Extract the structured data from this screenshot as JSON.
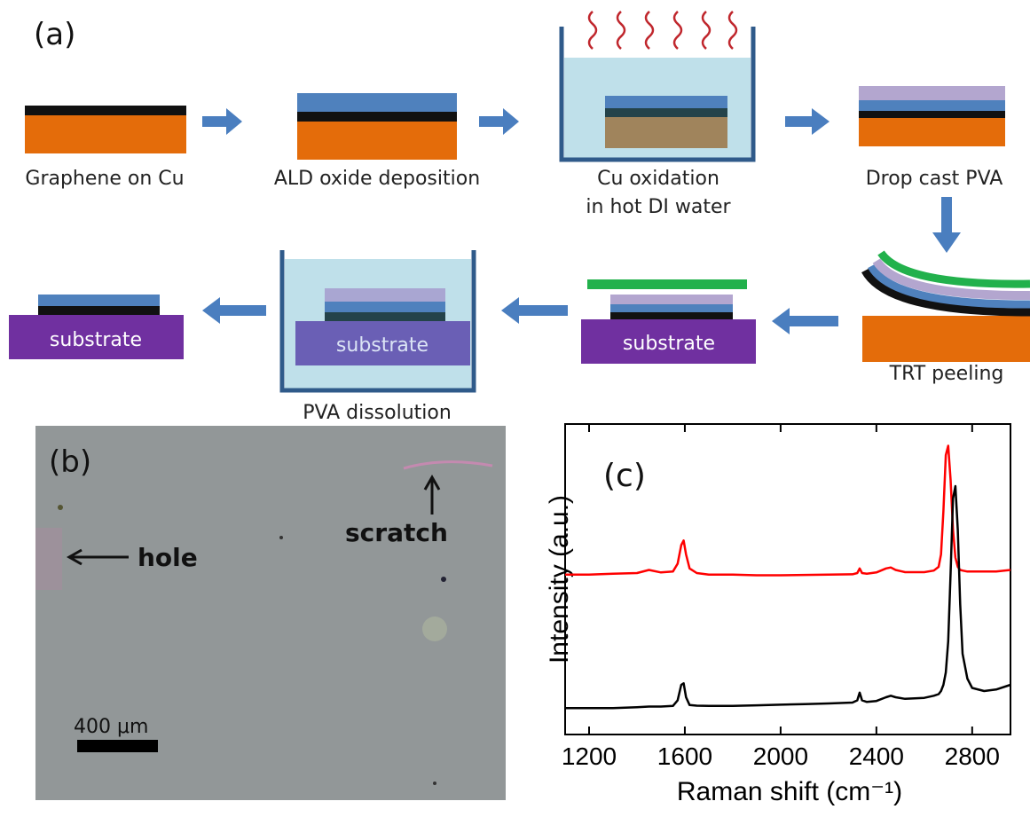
{
  "panel_labels": [
    "(a)",
    "(b)",
    "(c)"
  ],
  "process": {
    "steps": [
      "Graphene on Cu",
      "ALD oxide deposition",
      "Cu oxidation",
      "in hot DI water",
      "Drop cast PVA",
      "TRT peeling",
      "PVA dissolution"
    ],
    "substrate_labels": [
      "substrate",
      "substrate",
      "substrate"
    ]
  },
  "micrograph": {
    "annotations": [
      "hole",
      "scratch"
    ],
    "scale_bar": "400 μm"
  },
  "chart_data": {
    "type": "line",
    "xlabel": "Raman shift (cm⁻¹)",
    "ylabel": "Intensity (a.u.)",
    "xlim": [
      1100,
      2960
    ],
    "ylim": [
      0,
      100
    ],
    "xticks": [
      1200,
      1600,
      2000,
      2400,
      2800
    ],
    "x": [
      1100,
      1200,
      1300,
      1400,
      1450,
      1500,
      1550,
      1570,
      1585,
      1595,
      1605,
      1620,
      1650,
      1700,
      1800,
      1900,
      2000,
      2100,
      2200,
      2300,
      2320,
      2330,
      2340,
      2360,
      2400,
      2440,
      2460,
      2480,
      2520,
      2600,
      2640,
      2660,
      2670,
      2680,
      2690,
      2700,
      2710,
      2720,
      2730,
      2740,
      2750,
      2760,
      2780,
      2800,
      2850,
      2900,
      2960
    ],
    "series": [
      {
        "color": "#ff0000",
        "values": [
          51.5,
          51.5,
          51.8,
          52,
          53,
          52.2,
          52.5,
          55,
          61,
          62.5,
          58,
          53.5,
          52,
          51.5,
          51.5,
          51.3,
          51.3,
          51.4,
          51.5,
          51.6,
          52,
          53.5,
          52,
          51.8,
          52.2,
          53.5,
          53.8,
          53,
          52.3,
          52.3,
          52.8,
          54,
          58,
          72,
          90,
          93,
          82,
          66,
          57,
          54,
          53,
          52.8,
          52.5,
          52.5,
          52.5,
          52.5,
          53
        ]
      },
      {
        "color": "#000000",
        "values": [
          8.5,
          8.5,
          8.5,
          8.8,
          9,
          9,
          9.2,
          11,
          16,
          16.5,
          12,
          9.5,
          9.3,
          9.2,
          9.2,
          9.4,
          9.6,
          9.8,
          10,
          10.3,
          11,
          13.5,
          11,
          10.5,
          10.8,
          12,
          12.5,
          12,
          11.5,
          11.8,
          12.5,
          13,
          14,
          16,
          20,
          30,
          52,
          76,
          80,
          66,
          42,
          26,
          18,
          15,
          14,
          14.5,
          16
        ]
      }
    ]
  }
}
